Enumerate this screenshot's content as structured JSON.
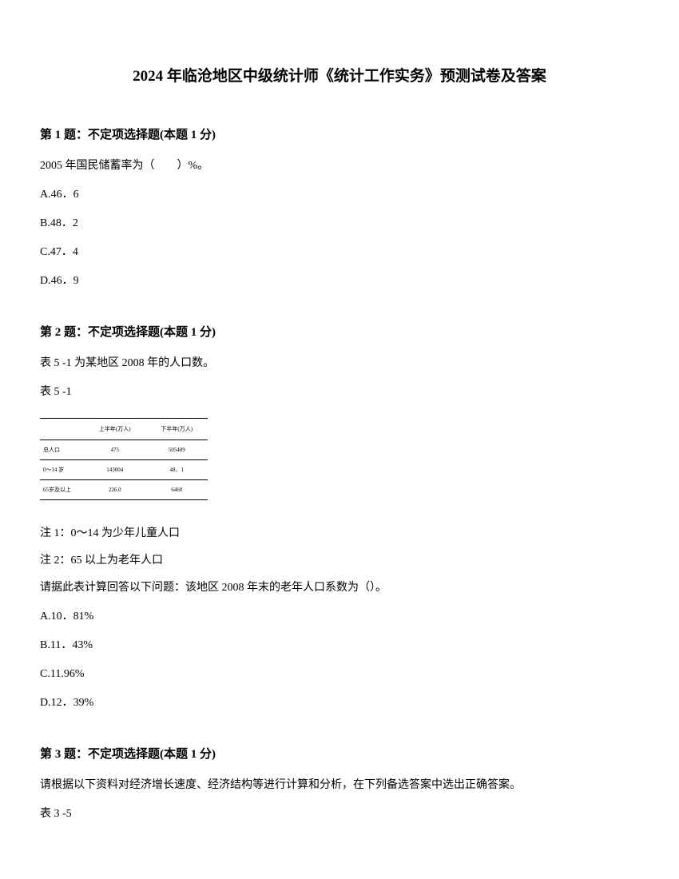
{
  "title": "2024 年临沧地区中级统计师《统计工作实务》预测试卷及答案",
  "q1": {
    "header": "第 1 题：不定项选择题(本题 1 分)",
    "text": "2005 年国民储蓄率为（　　）%。",
    "options": {
      "a": "A.46．6",
      "b": "B.48．2",
      "c": "C.47．4",
      "d": "D.46．9"
    }
  },
  "q2": {
    "header": "第 2 题：不定项选择题(本题 1 分)",
    "text1": "表 5 -1 为某地区 2008 年的人口数。",
    "text2": "表 5 -1",
    "table": {
      "headers": {
        "col1": "",
        "col2": "上半年(万人)",
        "col3": "下半年(万人)"
      },
      "rows": {
        "r1c1": "总人口",
        "r1c2": "475",
        "r1c3": "505409",
        "r2c1": "0～14 岁",
        "r2c2": "143004",
        "r2c3": "48．1",
        "r3c1": "65岁及以上",
        "r3c2": "226.0",
        "r3c3": "6460"
      }
    },
    "note1": "注 1：0～14 为少年儿童人口",
    "note2": "注 2：65 以上为老年人口",
    "text3": "请据此表计算回答以下问题：该地区 2008 年末的老年人口系数为（）。",
    "options": {
      "a": "A.10．81%",
      "b": "B.11．43%",
      "c": "C.11.96%",
      "d": "D.12．39%"
    }
  },
  "q3": {
    "header": "第 3 题：不定项选择题(本题 1 分)",
    "text1": "请根据以下资料对经济增长速度、经济结构等进行计算和分析，在下列备选答案中选出正确答案。",
    "text2": "表 3 -5"
  }
}
